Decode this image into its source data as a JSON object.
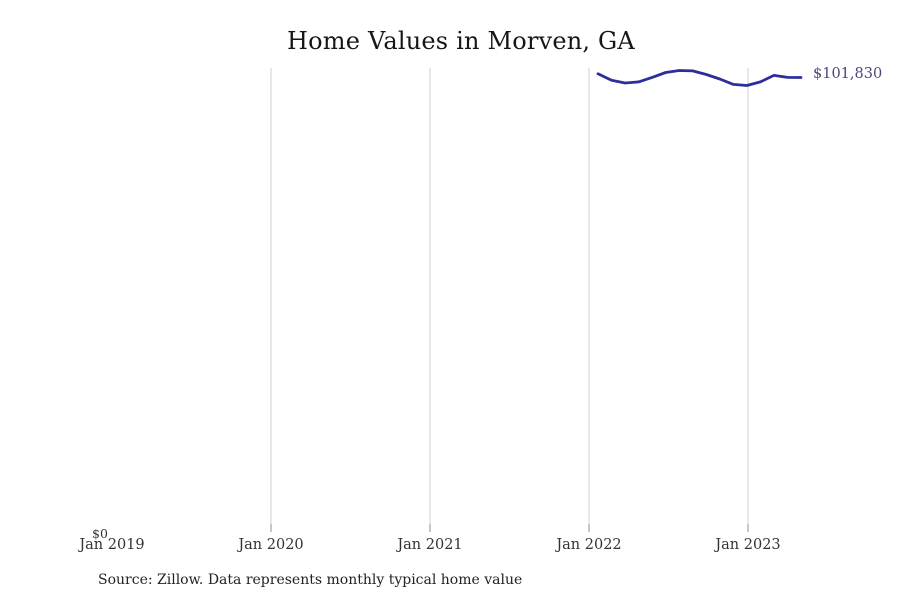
{
  "page": {
    "title": "Home Values in Morven, GA",
    "source_note": "Source: Zillow. Data represents monthly typical home value"
  },
  "chart_data": {
    "type": "line",
    "title": "Home Values in Morven, GA",
    "x_tick_labels": [
      "Jan 2019",
      "Jan 2020",
      "Jan 2021",
      "Jan 2022",
      "Jan 2023"
    ],
    "x_axis_range": [
      "Jan 2019",
      "Oct 2023"
    ],
    "ylim": [
      0,
      104000
    ],
    "y_origin_label": "$0",
    "end_label": "$101,830",
    "grid": "vertical-only",
    "legend": "none",
    "series": [
      {
        "name": "Monthly typical home value",
        "x": [
          "Jan 2022",
          "Feb 2022",
          "Mar 2022",
          "Apr 2022",
          "May 2022",
          "Jun 2022",
          "Jul 2022",
          "Aug 2022",
          "Sep 2022",
          "Oct 2022",
          "Nov 2022",
          "Dec 2022",
          "Jan 2023",
          "Feb 2023",
          "Mar 2023",
          "Apr 2023"
        ],
        "values": [
          102650,
          101200,
          100600,
          100850,
          101850,
          102950,
          103400,
          103300,
          102500,
          101500,
          100300,
          100050,
          100850,
          102300,
          101850,
          101830
        ]
      }
    ],
    "colors": {
      "line": "#2c2e9c",
      "gridline": "#cfcfcf",
      "tick": "#8f8f8f",
      "end_label": "#47477f",
      "axis_text": "#333333"
    }
  }
}
